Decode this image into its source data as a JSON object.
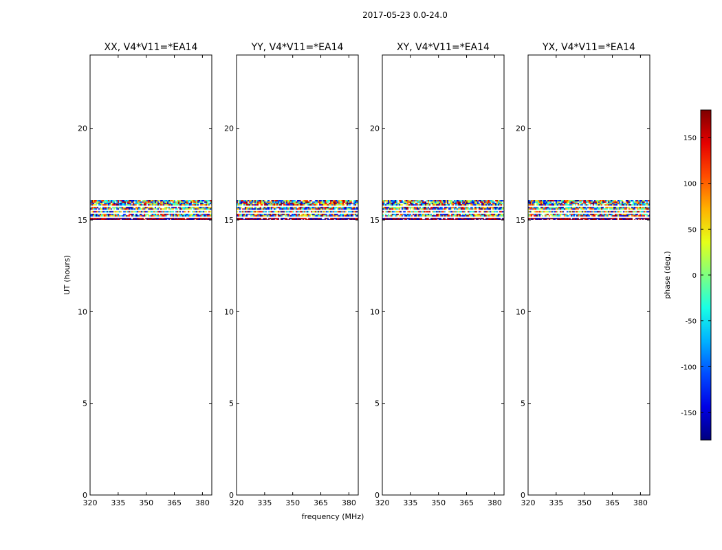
{
  "chart_data": {
    "type": "heatmap",
    "suptitle": "2017-05-23 0.0-24.0",
    "xlabel": "frequency (MHz)",
    "ylabel": "UT (hours)",
    "xlim": [
      320,
      385
    ],
    "ylim": [
      0,
      24
    ],
    "xticks": [
      320,
      335,
      350,
      365,
      380
    ],
    "yticks": [
      0,
      5,
      10,
      15,
      20
    ],
    "data_time_range_hours": [
      15.0,
      16.1
    ],
    "colormap": "jet",
    "panels": [
      {
        "title": "XX, V4*V11=*EA14"
      },
      {
        "title": "YY, V4*V11=*EA14"
      },
      {
        "title": "XY, V4*V11=*EA14"
      },
      {
        "title": "YX, V4*V11=*EA14"
      }
    ],
    "colorbar": {
      "label": "phase (deg.)",
      "range": [
        -180,
        180
      ],
      "ticks": [
        -150,
        -100,
        -50,
        0,
        50,
        100,
        150
      ]
    }
  }
}
